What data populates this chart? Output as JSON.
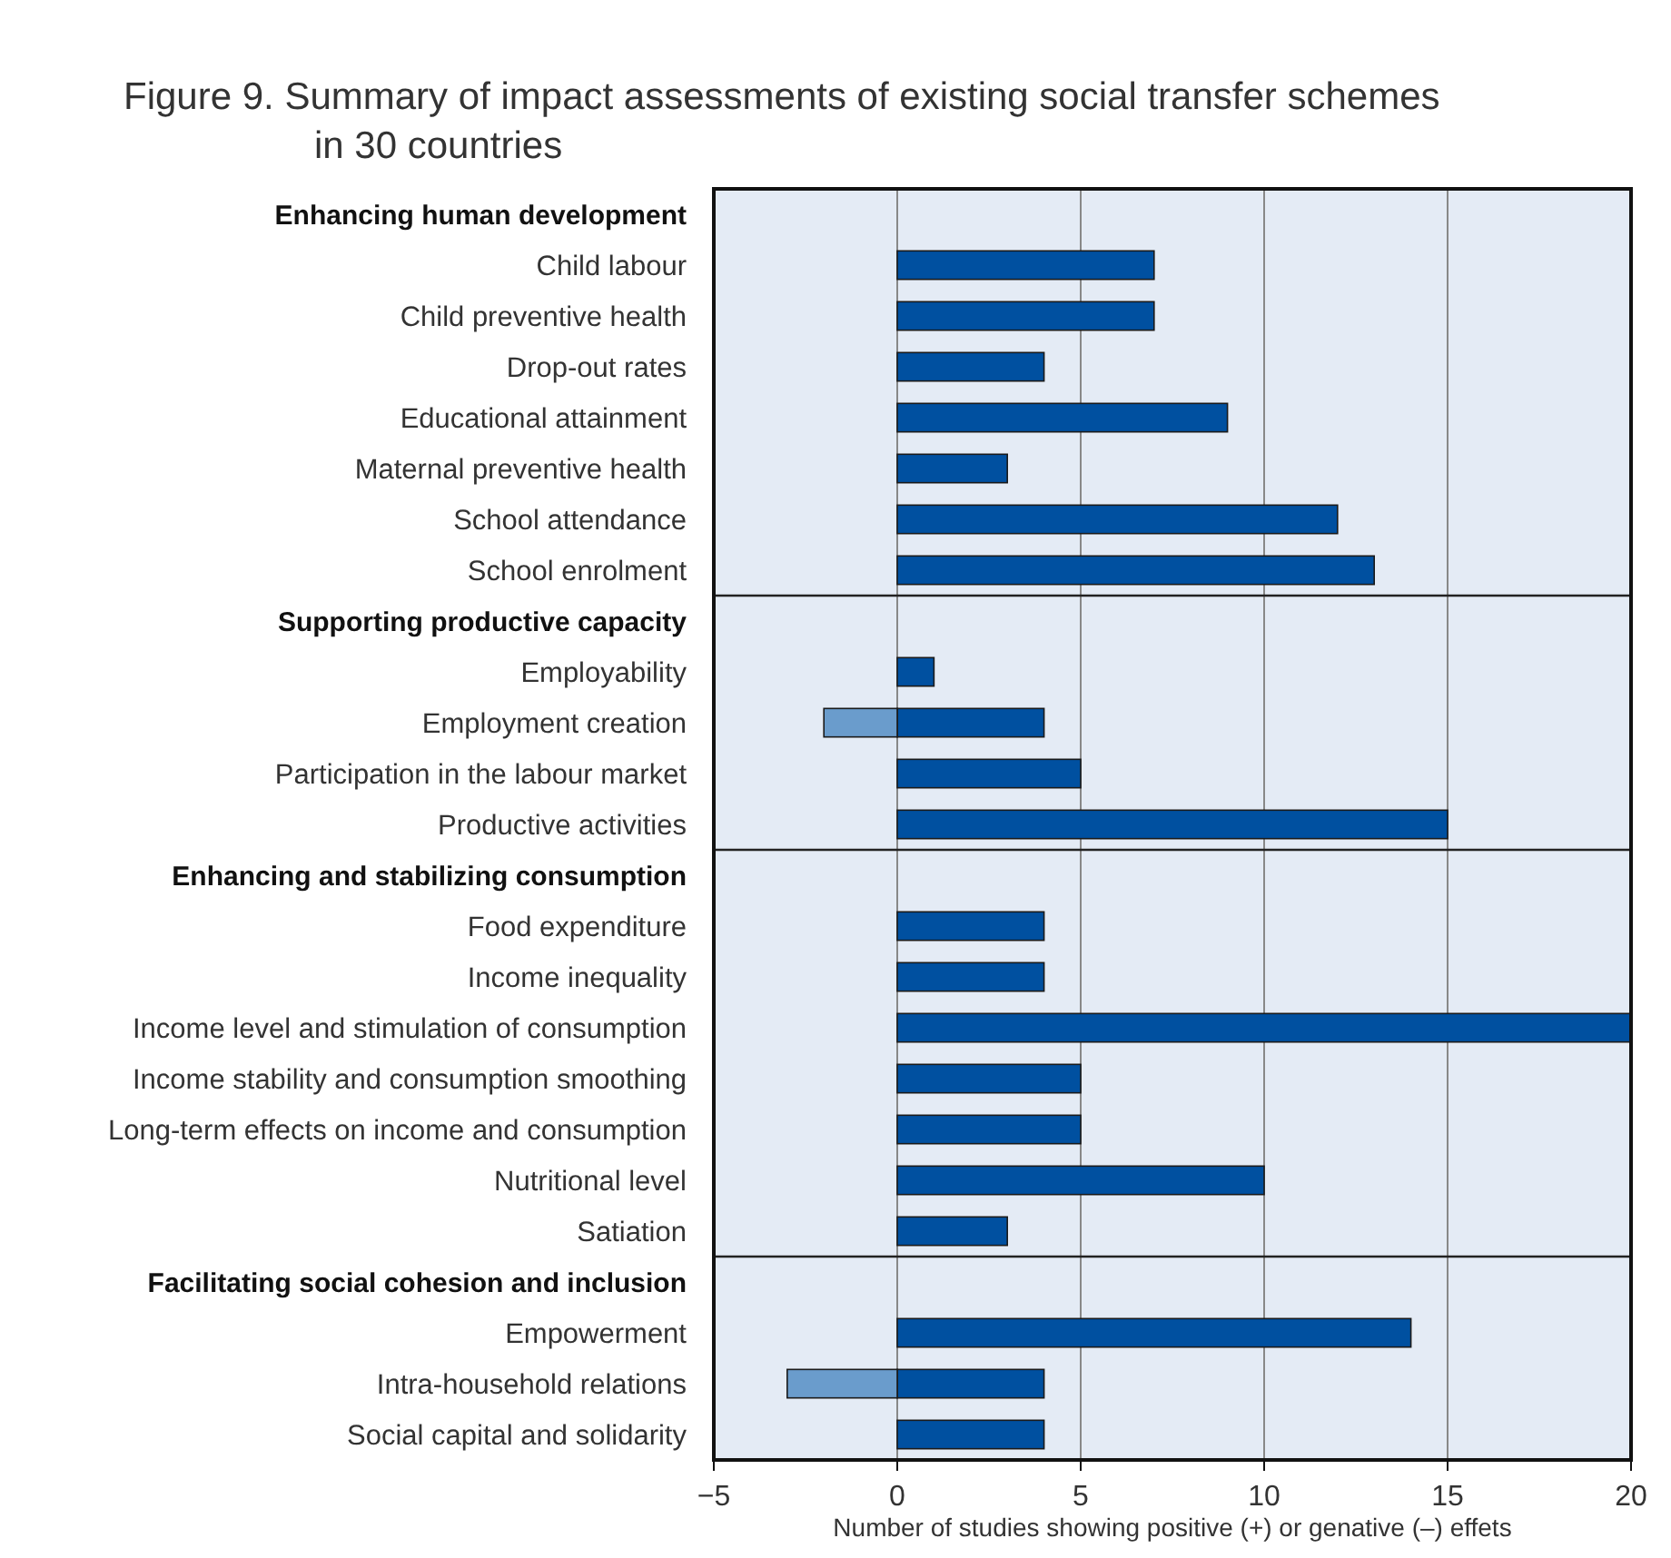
{
  "chart_data": {
    "type": "bar",
    "orientation": "horizontal",
    "title": "Figure 9. Summary of impact assessments of existing social transfer schemes in 30 countries",
    "xlabel": "Number of studies showing positive (+) or genative (–) effets",
    "categories": [
      "Enhancing human development",
      "Child labour",
      "Child preventive health",
      "Drop-out rates",
      "Educational attainment",
      "Maternal preventive health",
      "School attendance",
      "School enrolment",
      "Supporting productive capacity",
      "Employability",
      "Employment creation",
      "Participation in the labour market",
      "Productive activities",
      "Enhancing and stabilizing consumption",
      "Food expenditure",
      "Income inequality",
      "Income level and stimulation of consumption",
      "Income stability and consumption smoothing",
      "Long-term effects on income and consumption",
      "Nutritional level",
      "Satiation",
      "Facilitating social cohesion and inclusion",
      "Empowerment",
      "Intra-household relations",
      "Social capital and solidarity"
    ],
    "series": [
      {
        "color": "#0050a0",
        "values": [
          null,
          7,
          7,
          4,
          9,
          3,
          12,
          13,
          null,
          1,
          4,
          5,
          15,
          null,
          4,
          4,
          20,
          5,
          5,
          10,
          3,
          null,
          14,
          4,
          4
        ]
      },
      {
        "color": "#6a9ccc",
        "values": [
          null,
          null,
          null,
          null,
          null,
          null,
          null,
          null,
          null,
          null,
          -2,
          null,
          null,
          null,
          null,
          null,
          null,
          null,
          null,
          null,
          null,
          null,
          null,
          -3,
          null
        ]
      }
    ],
    "xlim": [
      -5,
      20
    ],
    "xticks": [
      {
        "value": -5,
        "label": "−5"
      },
      0,
      5,
      10,
      15,
      20
    ],
    "grid": "x"
  }
}
